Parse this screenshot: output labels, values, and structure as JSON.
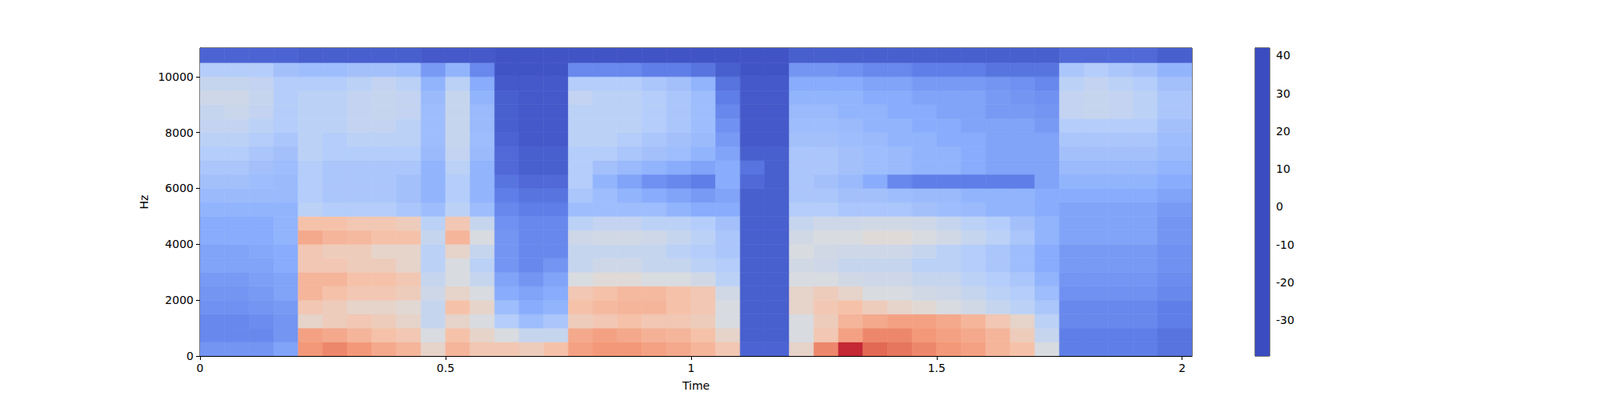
{
  "chart_data": {
    "type": "heatmap",
    "xlabel": "Time",
    "ylabel": "Hz",
    "xlim": [
      0,
      2.02
    ],
    "xticks": [
      0,
      0.5,
      1,
      1.5,
      2
    ],
    "ylim": [
      0,
      11025
    ],
    "yticks": [
      0,
      2000,
      4000,
      6000,
      8000,
      10000
    ],
    "time_edges": [
      0,
      0.05,
      0.1,
      0.15,
      0.2,
      0.25,
      0.3,
      0.35,
      0.4,
      0.45,
      0.5,
      0.55,
      0.6,
      0.65,
      0.7,
      0.75,
      0.8,
      0.85,
      0.9,
      0.95,
      1.0,
      1.05,
      1.1,
      1.15,
      1.2,
      1.25,
      1.3,
      1.35,
      1.4,
      1.45,
      1.5,
      1.55,
      1.6,
      1.65,
      1.7,
      1.75,
      1.8,
      1.85,
      1.9,
      1.95,
      2.02
    ],
    "freq_edges": [
      0,
      500,
      1000,
      1500,
      2000,
      2500,
      3000,
      3500,
      4000,
      4500,
      5000,
      5500,
      6000,
      6500,
      7000,
      7500,
      8000,
      8500,
      9000,
      9500,
      10000,
      10500,
      11025
    ],
    "cells": [
      [
        -25,
        -25,
        -25,
        -22,
        22,
        25,
        22,
        18,
        15,
        5,
        15,
        10,
        10,
        8,
        12,
        20,
        22,
        22,
        20,
        18,
        15,
        10,
        -35,
        -35,
        5,
        25,
        38,
        30,
        28,
        25,
        22,
        20,
        15,
        12,
        0,
        -30,
        -30,
        -30,
        -30,
        -32
      ],
      [
        -28,
        -28,
        -28,
        -25,
        20,
        18,
        15,
        12,
        10,
        0,
        12,
        5,
        0,
        -5,
        -5,
        18,
        20,
        18,
        16,
        15,
        12,
        5,
        -36,
        -36,
        0,
        10,
        20,
        25,
        25,
        22,
        20,
        18,
        15,
        8,
        -5,
        -30,
        -30,
        -30,
        -30,
        -32
      ],
      [
        -28,
        -28,
        -27,
        -25,
        5,
        8,
        10,
        8,
        5,
        -5,
        5,
        0,
        -10,
        -15,
        -12,
        8,
        10,
        12,
        10,
        10,
        8,
        0,
        -36,
        -36,
        0,
        8,
        15,
        18,
        20,
        20,
        18,
        15,
        10,
        5,
        -8,
        -28,
        -28,
        -28,
        -28,
        -30
      ],
      [
        -26,
        -26,
        -25,
        -24,
        10,
        8,
        5,
        5,
        3,
        -5,
        12,
        5,
        -15,
        -20,
        -18,
        12,
        14,
        15,
        15,
        12,
        10,
        0,
        -36,
        -36,
        5,
        10,
        12,
        8,
        5,
        3,
        0,
        -2,
        -5,
        -8,
        -12,
        -28,
        -28,
        -28,
        -28,
        -30
      ],
      [
        -25,
        -25,
        -24,
        -22,
        15,
        12,
        10,
        10,
        8,
        -3,
        5,
        0,
        -20,
        -22,
        -20,
        10,
        12,
        14,
        14,
        12,
        10,
        -2,
        -36,
        -36,
        5,
        8,
        5,
        0,
        0,
        -2,
        -3,
        -5,
        -8,
        -10,
        -15,
        -26,
        -26,
        -26,
        -26,
        -28
      ],
      [
        -24,
        -24,
        -23,
        -22,
        15,
        15,
        12,
        12,
        10,
        -5,
        0,
        -5,
        -22,
        -25,
        -22,
        0,
        2,
        2,
        0,
        0,
        -2,
        -8,
        -36,
        -36,
        0,
        0,
        -2,
        -3,
        -3,
        -5,
        -5,
        -8,
        -10,
        -12,
        -18,
        -25,
        -25,
        -25,
        -25,
        -27
      ],
      [
        -22,
        -22,
        -22,
        -20,
        10,
        10,
        8,
        8,
        5,
        -8,
        0,
        -8,
        -25,
        -28,
        -25,
        -5,
        -3,
        -3,
        -5,
        -5,
        -8,
        -10,
        -36,
        -36,
        -2,
        -3,
        -5,
        -5,
        -5,
        -8,
        -8,
        -10,
        -12,
        -15,
        -20,
        -24,
        -24,
        -24,
        -24,
        -26
      ],
      [
        -22,
        -22,
        -21,
        -20,
        10,
        8,
        8,
        5,
        5,
        -8,
        5,
        -5,
        -25,
        -28,
        -28,
        -5,
        -5,
        -5,
        -5,
        -8,
        -10,
        -12,
        -36,
        -36,
        0,
        -2,
        -3,
        -3,
        -3,
        -5,
        -8,
        -10,
        -12,
        -15,
        -20,
        -24,
        -24,
        -24,
        -24,
        -26
      ],
      [
        -20,
        -20,
        -20,
        -18,
        18,
        15,
        14,
        12,
        12,
        -5,
        15,
        0,
        -25,
        -28,
        -28,
        -3,
        -2,
        -2,
        -3,
        -5,
        -8,
        -12,
        -36,
        -36,
        -2,
        0,
        0,
        2,
        2,
        0,
        -2,
        -5,
        -8,
        -12,
        -18,
        -22,
        -22,
        -22,
        -22,
        -25
      ],
      [
        -20,
        -20,
        -20,
        -18,
        12,
        12,
        10,
        10,
        8,
        -8,
        10,
        -5,
        -26,
        -28,
        -28,
        -8,
        -6,
        -6,
        -8,
        -8,
        -10,
        -14,
        -36,
        -36,
        -5,
        -3,
        -3,
        -2,
        -2,
        -3,
        -5,
        -8,
        -10,
        -14,
        -18,
        -22,
        -22,
        -22,
        -22,
        -25
      ],
      [
        -18,
        -18,
        -18,
        -18,
        -8,
        -10,
        -10,
        -10,
        -12,
        -15,
        -8,
        -15,
        -28,
        -30,
        -30,
        -15,
        -15,
        -15,
        -15,
        -18,
        -20,
        -20,
        -36,
        -36,
        -10,
        -10,
        -12,
        -12,
        -12,
        -14,
        -15,
        -16,
        -18,
        -18,
        -20,
        -22,
        -22,
        -22,
        -22,
        -24
      ],
      [
        -16,
        -16,
        -16,
        -16,
        -10,
        -12,
        -12,
        -12,
        -14,
        -18,
        -10,
        -18,
        -30,
        -32,
        -32,
        -12,
        -15,
        -18,
        -20,
        -22,
        -24,
        -22,
        -36,
        -36,
        -12,
        -12,
        -14,
        -14,
        -15,
        -16,
        -16,
        -18,
        -18,
        -18,
        -20,
        -20,
        -20,
        -20,
        -20,
        -22
      ],
      [
        -14,
        -14,
        -15,
        -16,
        -10,
        -12,
        -12,
        -12,
        -14,
        -18,
        -10,
        -18,
        -32,
        -34,
        -34,
        -10,
        -18,
        -22,
        -26,
        -28,
        -30,
        -20,
        -34,
        -36,
        -12,
        -14,
        -16,
        -20,
        -28,
        -30,
        -30,
        -30,
        -30,
        -30,
        -22,
        -18,
        -18,
        -18,
        -18,
        -20
      ],
      [
        -12,
        -12,
        -14,
        -15,
        -10,
        -12,
        -12,
        -12,
        -12,
        -18,
        -8,
        -18,
        -34,
        -36,
        -36,
        -10,
        -14,
        -16,
        -18,
        -20,
        -22,
        -20,
        -32,
        -36,
        -12,
        -12,
        -14,
        -15,
        -16,
        -18,
        -18,
        -20,
        -22,
        -22,
        -22,
        -16,
        -16,
        -16,
        -16,
        -18
      ],
      [
        -10,
        -10,
        -12,
        -14,
        -8,
        -10,
        -10,
        -10,
        -10,
        -16,
        -6,
        -16,
        -34,
        -36,
        -36,
        -10,
        -10,
        -12,
        -14,
        -15,
        -18,
        -22,
        -36,
        -36,
        -12,
        -12,
        -14,
        -15,
        -16,
        -18,
        -18,
        -20,
        -22,
        -22,
        -22,
        -14,
        -14,
        -14,
        -14,
        -16
      ],
      [
        -8,
        -8,
        -10,
        -12,
        -8,
        -10,
        -8,
        -8,
        -8,
        -15,
        -5,
        -15,
        -35,
        -37,
        -37,
        -8,
        -8,
        -10,
        -12,
        -14,
        -16,
        -24,
        -37,
        -37,
        -14,
        -14,
        -15,
        -16,
        -18,
        -18,
        -20,
        -20,
        -22,
        -22,
        -22,
        -12,
        -12,
        -12,
        -12,
        -15
      ],
      [
        -6,
        -6,
        -8,
        -10,
        -8,
        -8,
        -6,
        -6,
        -8,
        -15,
        -5,
        -16,
        -36,
        -37,
        -37,
        -8,
        -8,
        -8,
        -10,
        -12,
        -15,
        -26,
        -37,
        -37,
        -15,
        -15,
        -16,
        -18,
        -18,
        -20,
        -20,
        -22,
        -22,
        -22,
        -24,
        -10,
        -10,
        -10,
        -10,
        -14
      ],
      [
        -5,
        -4,
        -6,
        -10,
        -8,
        -8,
        -6,
        -5,
        -6,
        -15,
        -5,
        -16,
        -36,
        -37,
        -37,
        -8,
        -8,
        -8,
        -10,
        -12,
        -15,
        -28,
        -37,
        -37,
        -16,
        -16,
        -18,
        -18,
        -20,
        -20,
        -22,
        -22,
        -24,
        -24,
        -25,
        -6,
        -5,
        -6,
        -8,
        -12
      ],
      [
        -3,
        -3,
        -5,
        -10,
        -8,
        -8,
        -6,
        -5,
        -6,
        -16,
        -5,
        -18,
        -36,
        -37,
        -37,
        -6,
        -8,
        -8,
        -10,
        -12,
        -15,
        -30,
        -37,
        -37,
        -18,
        -18,
        -18,
        -20,
        -20,
        -22,
        -22,
        -22,
        -24,
        -25,
        -26,
        -6,
        -5,
        -6,
        -8,
        -12
      ],
      [
        -5,
        -5,
        -6,
        -10,
        -10,
        -10,
        -8,
        -6,
        -8,
        -18,
        -8,
        -20,
        -37,
        -37,
        -37,
        -10,
        -10,
        -10,
        -12,
        -14,
        -18,
        -32,
        -37,
        -37,
        -20,
        -20,
        -20,
        -22,
        -22,
        -24,
        -24,
        -24,
        -25,
        -26,
        -28,
        -8,
        -6,
        -8,
        -10,
        -14
      ],
      [
        -10,
        -10,
        -10,
        -14,
        -15,
        -15,
        -14,
        -14,
        -15,
        -24,
        -18,
        -28,
        -38,
        -38,
        -38,
        -28,
        -28,
        -28,
        -30,
        -30,
        -32,
        -36,
        -38,
        -38,
        -25,
        -25,
        -26,
        -28,
        -28,
        -30,
        -30,
        -30,
        -32,
        -32,
        -32,
        -12,
        -10,
        -12,
        -14,
        -18
      ],
      [
        -35,
        -35,
        -35,
        -35,
        -36,
        -36,
        -36,
        -36,
        -36,
        -37,
        -37,
        -37,
        -38,
        -38,
        -38,
        -38,
        -38,
        -38,
        -38,
        -38,
        -38,
        -38,
        -38,
        -38,
        -36,
        -36,
        -36,
        -36,
        -36,
        -36,
        -36,
        -36,
        -36,
        -36,
        -36,
        -34,
        -34,
        -34,
        -34,
        -36
      ]
    ],
    "colorbar": {
      "range": [
        -39.5,
        42
      ],
      "ticks": [
        -30,
        -20,
        -10,
        0,
        10,
        20,
        30,
        40
      ]
    }
  }
}
